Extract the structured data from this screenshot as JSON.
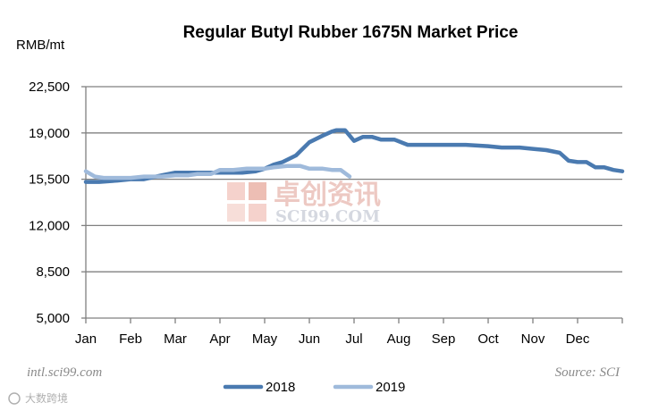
{
  "chart_data": {
    "type": "line",
    "title": "Regular Butyl Rubber 1675N Market Price",
    "ylabel": "RMB/mt",
    "xlabel": "",
    "ylim": [
      5000,
      22500
    ],
    "yticks": [
      5000,
      8500,
      12000,
      15500,
      19000,
      22500
    ],
    "ytick_labels": [
      "5,000",
      "8,500",
      "12,000",
      "15,500",
      "19,000",
      "22,500"
    ],
    "categories": [
      "Jan",
      "Feb",
      "Mar",
      "Apr",
      "May",
      "Jun",
      "Jul",
      "Aug",
      "Sep",
      "Oct",
      "Nov",
      "Dec"
    ],
    "x_domain": [
      0,
      12
    ],
    "grid": true,
    "legend": "bottom",
    "series": [
      {
        "name": "2018",
        "color": "#4a7ab0",
        "x": [
          0,
          0.3,
          0.7,
          1.0,
          1.3,
          1.7,
          2.0,
          2.4,
          2.8,
          3.2,
          3.5,
          3.8,
          4.0,
          4.2,
          4.4,
          4.7,
          5.0,
          5.3,
          5.5,
          5.6,
          5.8,
          6.0,
          6.2,
          6.4,
          6.6,
          6.9,
          7.2,
          7.5,
          8.0,
          8.5,
          9.0,
          9.3,
          9.7,
          10.0,
          10.3,
          10.6,
          10.8,
          11.0,
          11.2,
          11.4,
          11.6,
          11.8,
          12.0
        ],
        "values": [
          15300,
          15300,
          15400,
          15500,
          15500,
          15800,
          16000,
          16000,
          16000,
          16000,
          16000,
          16100,
          16300,
          16600,
          16800,
          17300,
          18300,
          18800,
          19100,
          19200,
          19200,
          18400,
          18700,
          18700,
          18500,
          18500,
          18100,
          18100,
          18100,
          18100,
          18000,
          17900,
          17900,
          17800,
          17700,
          17500,
          16900,
          16800,
          16800,
          16400,
          16400,
          16200,
          16100
        ]
      },
      {
        "name": "2019",
        "color": "#9fbadb",
        "x": [
          0,
          0.2,
          0.4,
          0.7,
          1.0,
          1.3,
          1.7,
          2.0,
          2.3,
          2.5,
          2.8,
          3.0,
          3.3,
          3.6,
          4.0,
          4.2,
          4.5,
          4.8,
          5.0,
          5.3,
          5.5,
          5.7,
          5.9
        ],
        "values": [
          16100,
          15700,
          15600,
          15600,
          15600,
          15700,
          15700,
          15800,
          15800,
          15900,
          15900,
          16200,
          16200,
          16300,
          16300,
          16400,
          16500,
          16500,
          16300,
          16300,
          16200,
          16200,
          15700
        ]
      }
    ]
  },
  "watermark": {
    "cn": "卓创资讯",
    "en": "SCI99.COM"
  },
  "footer": {
    "left": "intl.sci99.com",
    "right": "Source: SCI"
  },
  "corner_mark": {
    "text": "大数跨境"
  }
}
